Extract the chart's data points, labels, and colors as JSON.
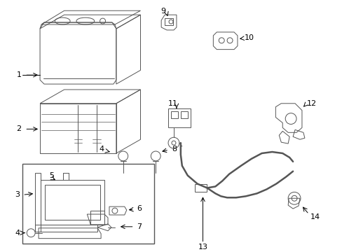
{
  "background_color": "#ffffff",
  "line_color": "#555555",
  "label_color": "#000000",
  "fig_w": 4.89,
  "fig_h": 3.6,
  "dpi": 100
}
